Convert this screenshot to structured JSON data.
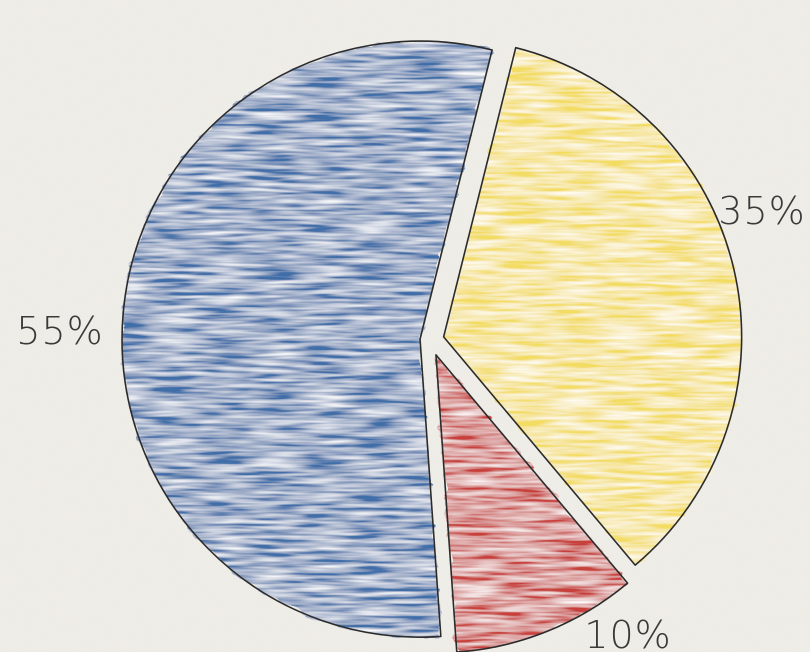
{
  "chart_data": {
    "type": "pie",
    "title": "",
    "slices": [
      {
        "label": "55%",
        "value": 55,
        "color": "#3f6ea8"
      },
      {
        "label": "35%",
        "value": 35,
        "color": "#f3dc62"
      },
      {
        "label": "10%",
        "value": 10,
        "color": "#c8413a"
      }
    ],
    "legend": "none"
  }
}
